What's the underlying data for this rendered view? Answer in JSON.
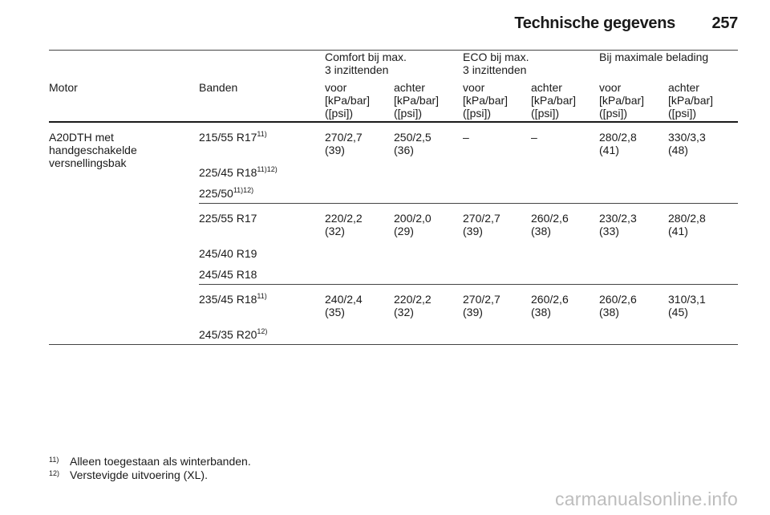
{
  "header": {
    "title": "Technische gegevens",
    "page_number": "257"
  },
  "table": {
    "groups": {
      "comfort": "Comfort bij max.\n3 inzittenden",
      "eco": "ECO bij max.\n3 inzittenden",
      "max": "Bij maximale belading"
    },
    "columns": {
      "motor": "Motor",
      "banden": "Banden",
      "voor": "voor",
      "achter": "achter"
    },
    "unit": "[kPa/bar]\n([psi])",
    "motor_value": "A20DTH met\nhandgeschakelde\nversnellingsbak",
    "rows": [
      {
        "tires": [
          {
            "size": "215/55 R17",
            "marks": "11)"
          },
          {
            "size": "225/45 R18",
            "marks": "11)12)"
          },
          {
            "size": "225/50",
            "marks": "11)12)"
          }
        ],
        "values": [
          "270/2,7\n(39)",
          "250/2,5\n(36)",
          "–",
          "–",
          "280/2,8\n(41)",
          "330/3,3\n(48)"
        ]
      },
      {
        "tires": [
          {
            "size": "225/55 R17",
            "marks": ""
          },
          {
            "size": "245/40 R19",
            "marks": ""
          },
          {
            "size": "245/45 R18",
            "marks": ""
          }
        ],
        "values": [
          "220/2,2\n(32)",
          "200/2,0\n(29)",
          "270/2,7\n(39)",
          "260/2,6\n(38)",
          "230/2,3\n(33)",
          "280/2,8\n(41)"
        ]
      },
      {
        "tires": [
          {
            "size": "235/45 R18",
            "marks": "11)"
          },
          {
            "size": "245/35 R20",
            "marks": "12)"
          }
        ],
        "values": [
          "240/2,4\n(35)",
          "220/2,2\n(32)",
          "270/2,7\n(39)",
          "260/2,6\n(38)",
          "260/2,6\n(38)",
          "310/3,1\n(45)"
        ]
      }
    ]
  },
  "footnotes": [
    {
      "mark": "11)",
      "text": "Alleen toegestaan als winterbanden."
    },
    {
      "mark": "12)",
      "text": "Verstevigde uitvoering (XL)."
    }
  ],
  "watermark": "carmanualsonline.info"
}
